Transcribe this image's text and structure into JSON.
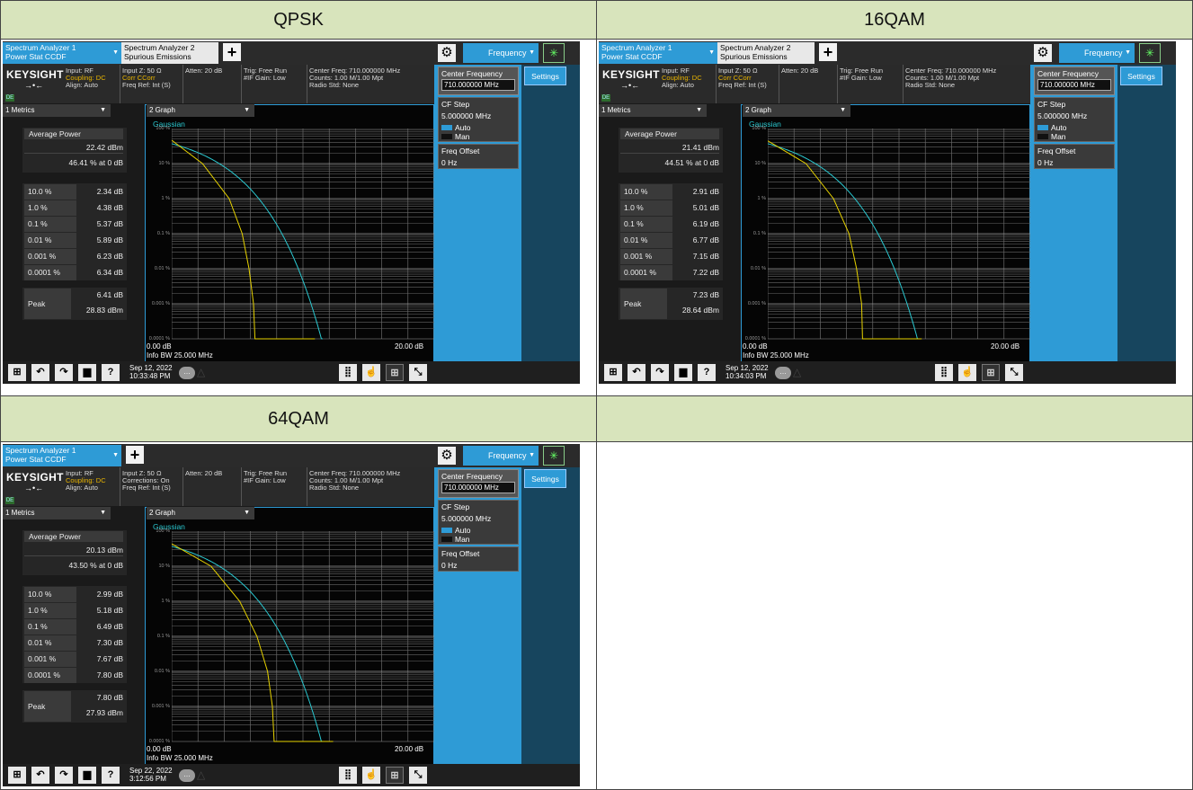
{
  "headers": [
    "QPSK",
    "16QAM",
    "64QAM",
    ""
  ],
  "common": {
    "tab1_line1": "Spectrum Analyzer 1",
    "tab1_line2": "Power Stat CCDF",
    "tab2_line1": "Spectrum Analyzer 2",
    "tab2_line2": "Spurious Emissions",
    "frequency_menu": "Frequency",
    "logo": "KEYSIGHT",
    "logo_badge": "DE",
    "input_rf": "Input: RF",
    "coupling": "Coupling: DC",
    "align": "Align: Auto",
    "input_z": "Input Z: 50 Ω",
    "corr": "Corr CCorr",
    "corrections_on": "Corrections: On",
    "freq_ref": "Freq Ref: Int (S)",
    "atten": "Atten: 20 dB",
    "trig": "Trig: Free Run",
    "if_gain": "#IF Gain: Low",
    "center_freq_info": "Center Freq: 710.000000 MHz",
    "counts": "Counts: 1.00 M/1.00 Mpt",
    "radio_std": "Radio Std: None",
    "center_frequency_label": "Center Frequency",
    "center_frequency_value": "710.000000 MHz",
    "settings": "Settings",
    "cf_step_label": "CF Step",
    "cf_step_value": "5.000000 MHz",
    "auto": "Auto",
    "man": "Man",
    "freq_offset_label": "Freq Offset",
    "freq_offset_value": "0 Hz",
    "metrics_dropdown": "1 Metrics",
    "graph_dropdown": "2 Graph",
    "gaussian": "Gaussian",
    "average_power_label": "Average Power",
    "peak_label": "Peak",
    "y_axis_labels": [
      "100 %",
      "10 %",
      "1 %",
      "0.1 %",
      "0.01 %",
      "0.001 %",
      "0.0001 %"
    ],
    "x_start": "0.00 dB",
    "x_end": "20.00 dB",
    "info_bw": "Info BW 25.000 MHz",
    "prob_labels": [
      "10.0 %",
      "1.0 %",
      "0.1 %",
      "0.01 %",
      "0.001 %",
      "0.0001 %"
    ]
  },
  "panels": [
    {
      "id": "qpsk",
      "avg_power": "22.42 dBm",
      "avg_pct": "46.41 % at 0 dB",
      "prob_values": [
        "2.34 dB",
        "4.38 dB",
        "5.37 dB",
        "5.89 dB",
        "6.23 dB",
        "6.34 dB"
      ],
      "peak_db": "6.41 dB",
      "peak_dbm": "28.83 dBm",
      "date": "Sep 12, 2022",
      "time": "10:33:48 PM"
    },
    {
      "id": "16qam",
      "avg_power": "21.41 dBm",
      "avg_pct": "44.51 % at 0 dB",
      "prob_values": [
        "2.91 dB",
        "5.01 dB",
        "6.19 dB",
        "6.77 dB",
        "7.15 dB",
        "7.22 dB"
      ],
      "peak_db": "7.23 dB",
      "peak_dbm": "28.64 dBm",
      "date": "Sep 12, 2022",
      "time": "10:34:03 PM"
    },
    {
      "id": "64qam",
      "avg_power": "20.13 dBm",
      "avg_pct": "43.50 % at 0 dB",
      "prob_values": [
        "2.99 dB",
        "5.18 dB",
        "6.49 dB",
        "7.30 dB",
        "7.67 dB",
        "7.80 dB"
      ],
      "peak_db": "7.80 dB",
      "peak_dbm": "27.93 dBm",
      "date": "Sep 22, 2022",
      "time": "3:12:56 PM"
    }
  ],
  "colors": {
    "header_bg": "#d8e4bc",
    "accent_blue": "#2e9bd6",
    "gaussian_trace": "#2ac8d0",
    "measured_trace": "#e6d200"
  }
}
